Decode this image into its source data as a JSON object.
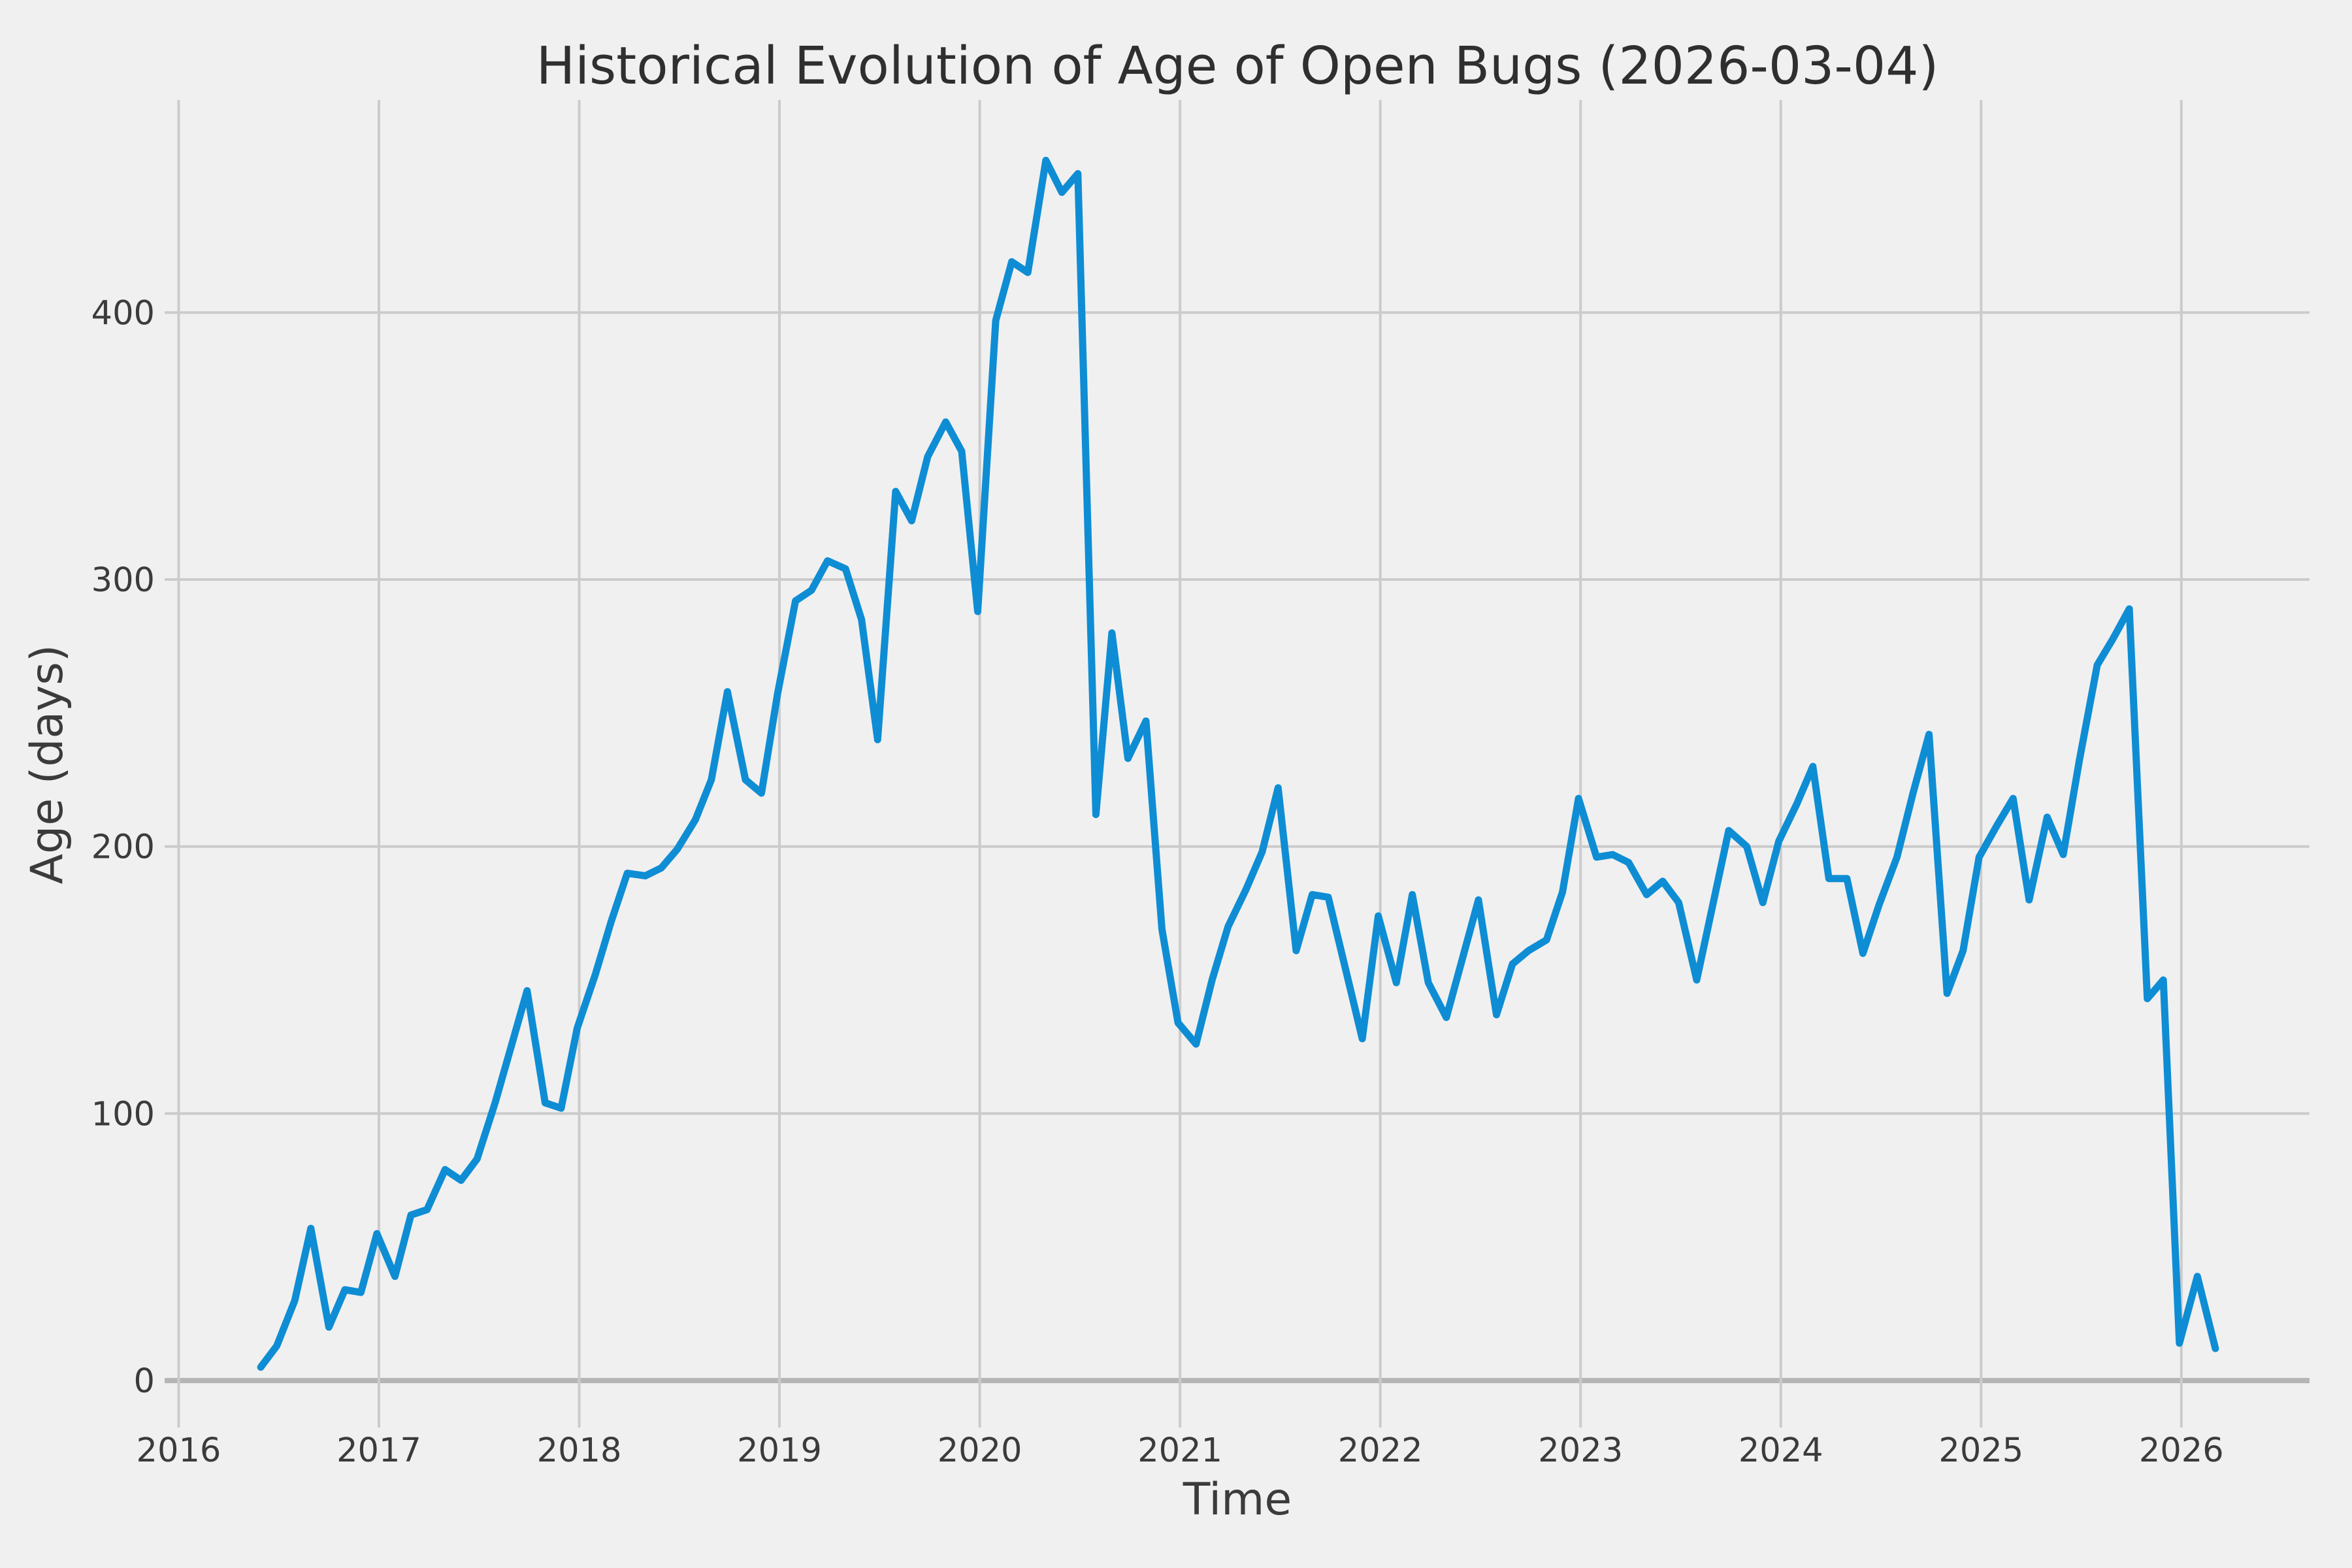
{
  "chart_data": {
    "type": "line",
    "title": "Historical Evolution of Age of Open Bugs (2026-03-04)",
    "xlabel": "Time",
    "ylabel": "Age (days)",
    "x_ticks": [
      2016,
      2017,
      2018,
      2019,
      2020,
      2021,
      2022,
      2023,
      2024,
      2025,
      2026
    ],
    "x_tick_labels": [
      "2016",
      "2017",
      "2018",
      "2019",
      "2020",
      "2021",
      "2022",
      "2023",
      "2024",
      "2025",
      "2026"
    ],
    "y_ticks": [
      0,
      100,
      200,
      300,
      400
    ],
    "y_tick_labels": [
      "0",
      "100",
      "200",
      "300",
      "400"
    ],
    "xlim": [
      2015.93,
      2026.64
    ],
    "ylim": [
      -17.6,
      479.6
    ],
    "grid": true,
    "legend_position": "none",
    "zero_line": true,
    "series": [
      {
        "name": "age-of-open-bugs",
        "x": [
          2016.41,
          2016.49,
          2016.58,
          2016.66,
          2016.75,
          2016.83,
          2016.91,
          2016.99,
          2017.08,
          2017.16,
          2017.24,
          2017.33,
          2017.41,
          2017.49,
          2017.58,
          2017.66,
          2017.74,
          2017.83,
          2017.91,
          2017.99,
          2018.08,
          2018.16,
          2018.24,
          2018.33,
          2018.41,
          2018.49,
          2018.58,
          2018.66,
          2018.74,
          2018.83,
          2018.91,
          2018.99,
          2019.08,
          2019.16,
          2019.24,
          2019.33,
          2019.41,
          2019.49,
          2019.58,
          2019.66,
          2019.74,
          2019.83,
          2019.91,
          2019.99,
          2020.08,
          2020.16,
          2020.24,
          2020.33,
          2020.41,
          2020.49,
          2020.58,
          2020.66,
          2020.74,
          2020.83,
          2020.91,
          2020.99,
          2021.08,
          2021.16,
          2021.24,
          2021.33,
          2021.41,
          2021.49,
          2021.58,
          2021.66,
          2021.74,
          2021.83,
          2021.91,
          2021.99,
          2022.08,
          2022.16,
          2022.24,
          2022.33,
          2022.41,
          2022.49,
          2022.58,
          2022.66,
          2022.74,
          2022.83,
          2022.91,
          2022.99,
          2023.08,
          2023.16,
          2023.24,
          2023.33,
          2023.41,
          2023.49,
          2023.58,
          2023.66,
          2023.74,
          2023.83,
          2023.91,
          2023.99,
          2024.08,
          2024.16,
          2024.24,
          2024.33,
          2024.41,
          2024.49,
          2024.58,
          2024.66,
          2024.74,
          2024.83,
          2024.91,
          2024.99,
          2025.08,
          2025.16,
          2025.24,
          2025.33,
          2025.41,
          2025.49,
          2025.58,
          2025.66,
          2025.74,
          2025.83,
          2025.91,
          2025.99,
          2026.08,
          2026.17
        ],
        "y": [
          5,
          13,
          30,
          57,
          20,
          34,
          33,
          55,
          39,
          62,
          64,
          79,
          75,
          83,
          104,
          125,
          146,
          104,
          102,
          132,
          152,
          172,
          190,
          189,
          192,
          199,
          210,
          225,
          258,
          225,
          220,
          257,
          292,
          296,
          307,
          304,
          285,
          240,
          333,
          322,
          346,
          359,
          348,
          288,
          397,
          419,
          415,
          457,
          445,
          452,
          212,
          280,
          233,
          247,
          169,
          134,
          126,
          150,
          170,
          184,
          198,
          222,
          161,
          182,
          181,
          153,
          128,
          174,
          149,
          182,
          149,
          136,
          158,
          180,
          137,
          156,
          161,
          165,
          183,
          218,
          196,
          197,
          194,
          182,
          187,
          179,
          150,
          178,
          206,
          200,
          179,
          202,
          216,
          230,
          188,
          188,
          160,
          178,
          196,
          220,
          242,
          145,
          161,
          196,
          208,
          218,
          180,
          211,
          197,
          232,
          268,
          278,
          289,
          143,
          150,
          14,
          39,
          12
        ]
      }
    ],
    "colors": {
      "line": "#0e8dd4",
      "background": "#f0f0f0",
      "grid": "#cbcbcb",
      "zero_line": "#b5b5b5",
      "text": "#3b3b3b"
    }
  }
}
